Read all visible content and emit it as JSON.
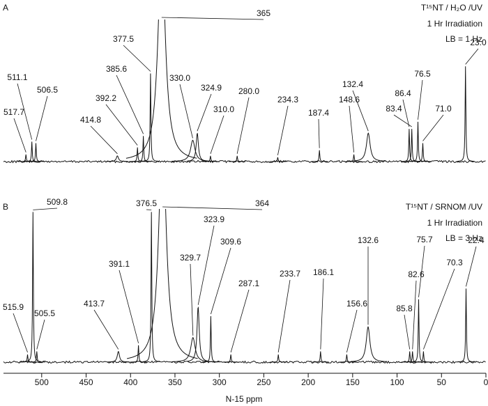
{
  "chart_data": [
    {
      "type": "spectrum",
      "panel_label": "A",
      "annotations": [
        "T¹⁵NT / H₂O /UV",
        "1 Hr Irradiation",
        "LB = 1 Hz"
      ],
      "x": [
        517.7,
        511.1,
        506.5,
        414.8,
        392.2,
        385.6,
        377.5,
        365,
        330.0,
        324.9,
        310.0,
        280.0,
        234.3,
        187.4,
        148.6,
        132.4,
        86.4,
        83.4,
        76.5,
        71.0,
        23.0
      ],
      "x_labels": [
        "517.7",
        "511.1",
        "506.5",
        "414.8",
        "392.2",
        "385.6",
        "377.5",
        "365",
        "330.0",
        "324.9",
        "310.0",
        "280.0",
        "234.3",
        "187.4",
        "148.6",
        "132.4",
        "86.4",
        "83.4",
        "76.5",
        "71.0",
        "23.0"
      ],
      "values": [
        5,
        14,
        13,
        4,
        10,
        18,
        62,
        150,
        15,
        20,
        4,
        4,
        3,
        8,
        5,
        20,
        23,
        23,
        28,
        13,
        67
      ],
      "widths": [
        0.5,
        0.5,
        0.5,
        1.5,
        0.5,
        0.5,
        0.5,
        5,
        3,
        1.5,
        0.5,
        0.5,
        0.5,
        0.5,
        0.5,
        2.5,
        0.5,
        0.5,
        0.5,
        0.5,
        0.5
      ],
      "xlim": [
        543,
        0
      ],
      "ylim": [
        0,
        100
      ]
    },
    {
      "type": "spectrum",
      "panel_label": "B",
      "annotations": [
        "T¹⁵NT / SRNOM /UV",
        "1 Hr Irradiation",
        "LB = 3 Hz"
      ],
      "x": [
        515.9,
        509.8,
        505.5,
        413.7,
        391.1,
        376.5,
        364,
        329.7,
        323.9,
        309.6,
        287.1,
        233.7,
        186.1,
        156.6,
        132.6,
        85.8,
        82.6,
        75.7,
        70.3,
        22.4
      ],
      "x_labels": [
        "515.9",
        "509.8",
        "505.5",
        "413.7",
        "391.1",
        "376.5",
        "364",
        "329.7",
        "323.9",
        "309.6",
        "287.1",
        "233.7",
        "186.1",
        "156.6",
        "132.6",
        "85.8",
        "82.6",
        "75.7",
        "70.3",
        "22.4"
      ],
      "values": [
        5,
        98,
        7,
        7,
        11,
        98,
        150,
        16,
        36,
        30,
        5,
        5,
        7,
        5,
        23,
        7,
        7,
        41,
        7,
        48
      ],
      "widths": [
        0.5,
        0.5,
        0.5,
        1.5,
        0.5,
        0.5,
        5,
        3,
        1.5,
        0.5,
        0.5,
        0.5,
        0.5,
        0.5,
        2.5,
        0.5,
        0.5,
        0.5,
        0.5,
        0.5
      ],
      "xlim": [
        543,
        0
      ],
      "ylim": [
        0,
        100
      ],
      "xlabel": "N-15 ppm",
      "xticks": [
        500,
        450,
        400,
        350,
        300,
        250,
        200,
        150,
        100,
        50,
        0
      ]
    }
  ]
}
